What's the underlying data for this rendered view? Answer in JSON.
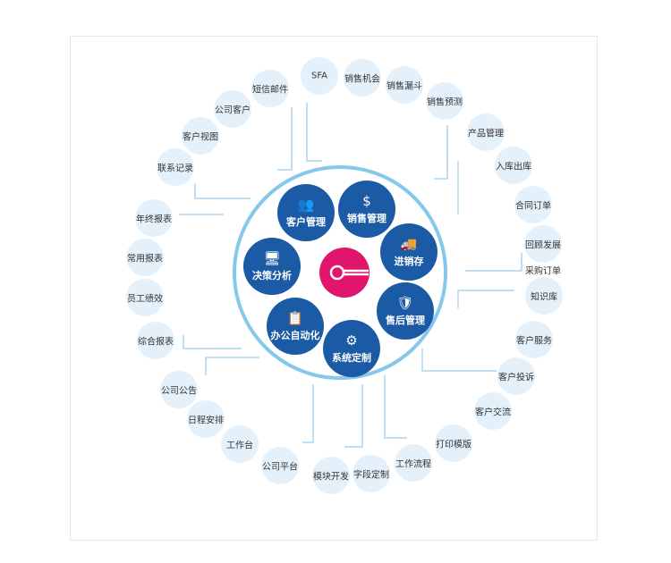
{
  "colors": {
    "ring": "#86c8ec",
    "module": "#1b5aa5",
    "center": "#e0166e",
    "node": "#e4f1fb",
    "line": "#aad6f0"
  },
  "center_icon": "circuit-node-icon",
  "modules": [
    {
      "label": "客户管理",
      "icon": "org-chart-icon",
      "glyph": "👥"
    },
    {
      "label": "销售管理",
      "icon": "person-dollar-icon",
      "glyph": "$"
    },
    {
      "label": "进销存",
      "icon": "truck-icon",
      "glyph": "🚚"
    },
    {
      "label": "售后管理",
      "icon": "shield-person-icon",
      "glyph": "🛡"
    },
    {
      "label": "系统定制",
      "icon": "gears-icon",
      "glyph": "⚙"
    },
    {
      "label": "办公自动化",
      "icon": "clipboard-check-icon",
      "glyph": "📋"
    },
    {
      "label": "决策分析",
      "icon": "presentation-icon",
      "glyph": "🖥"
    }
  ],
  "features": [
    "SFA",
    "销售机会",
    "销售漏斗",
    "销售预测",
    "产品管理",
    "入库出库",
    "合同订单",
    "回顾发展",
    "采购订单",
    "知识库",
    "客户服务",
    "客户投诉",
    "客户交流",
    "打印模版",
    "工作流程",
    "字段定制",
    "模块开发",
    "公司平台",
    "工作台",
    "日程安排",
    "公司公告",
    "综合报表",
    "员工绩效",
    "常用报表",
    "年终报表",
    "联系记录",
    "客户视图",
    "公司客户",
    "短信邮件"
  ]
}
